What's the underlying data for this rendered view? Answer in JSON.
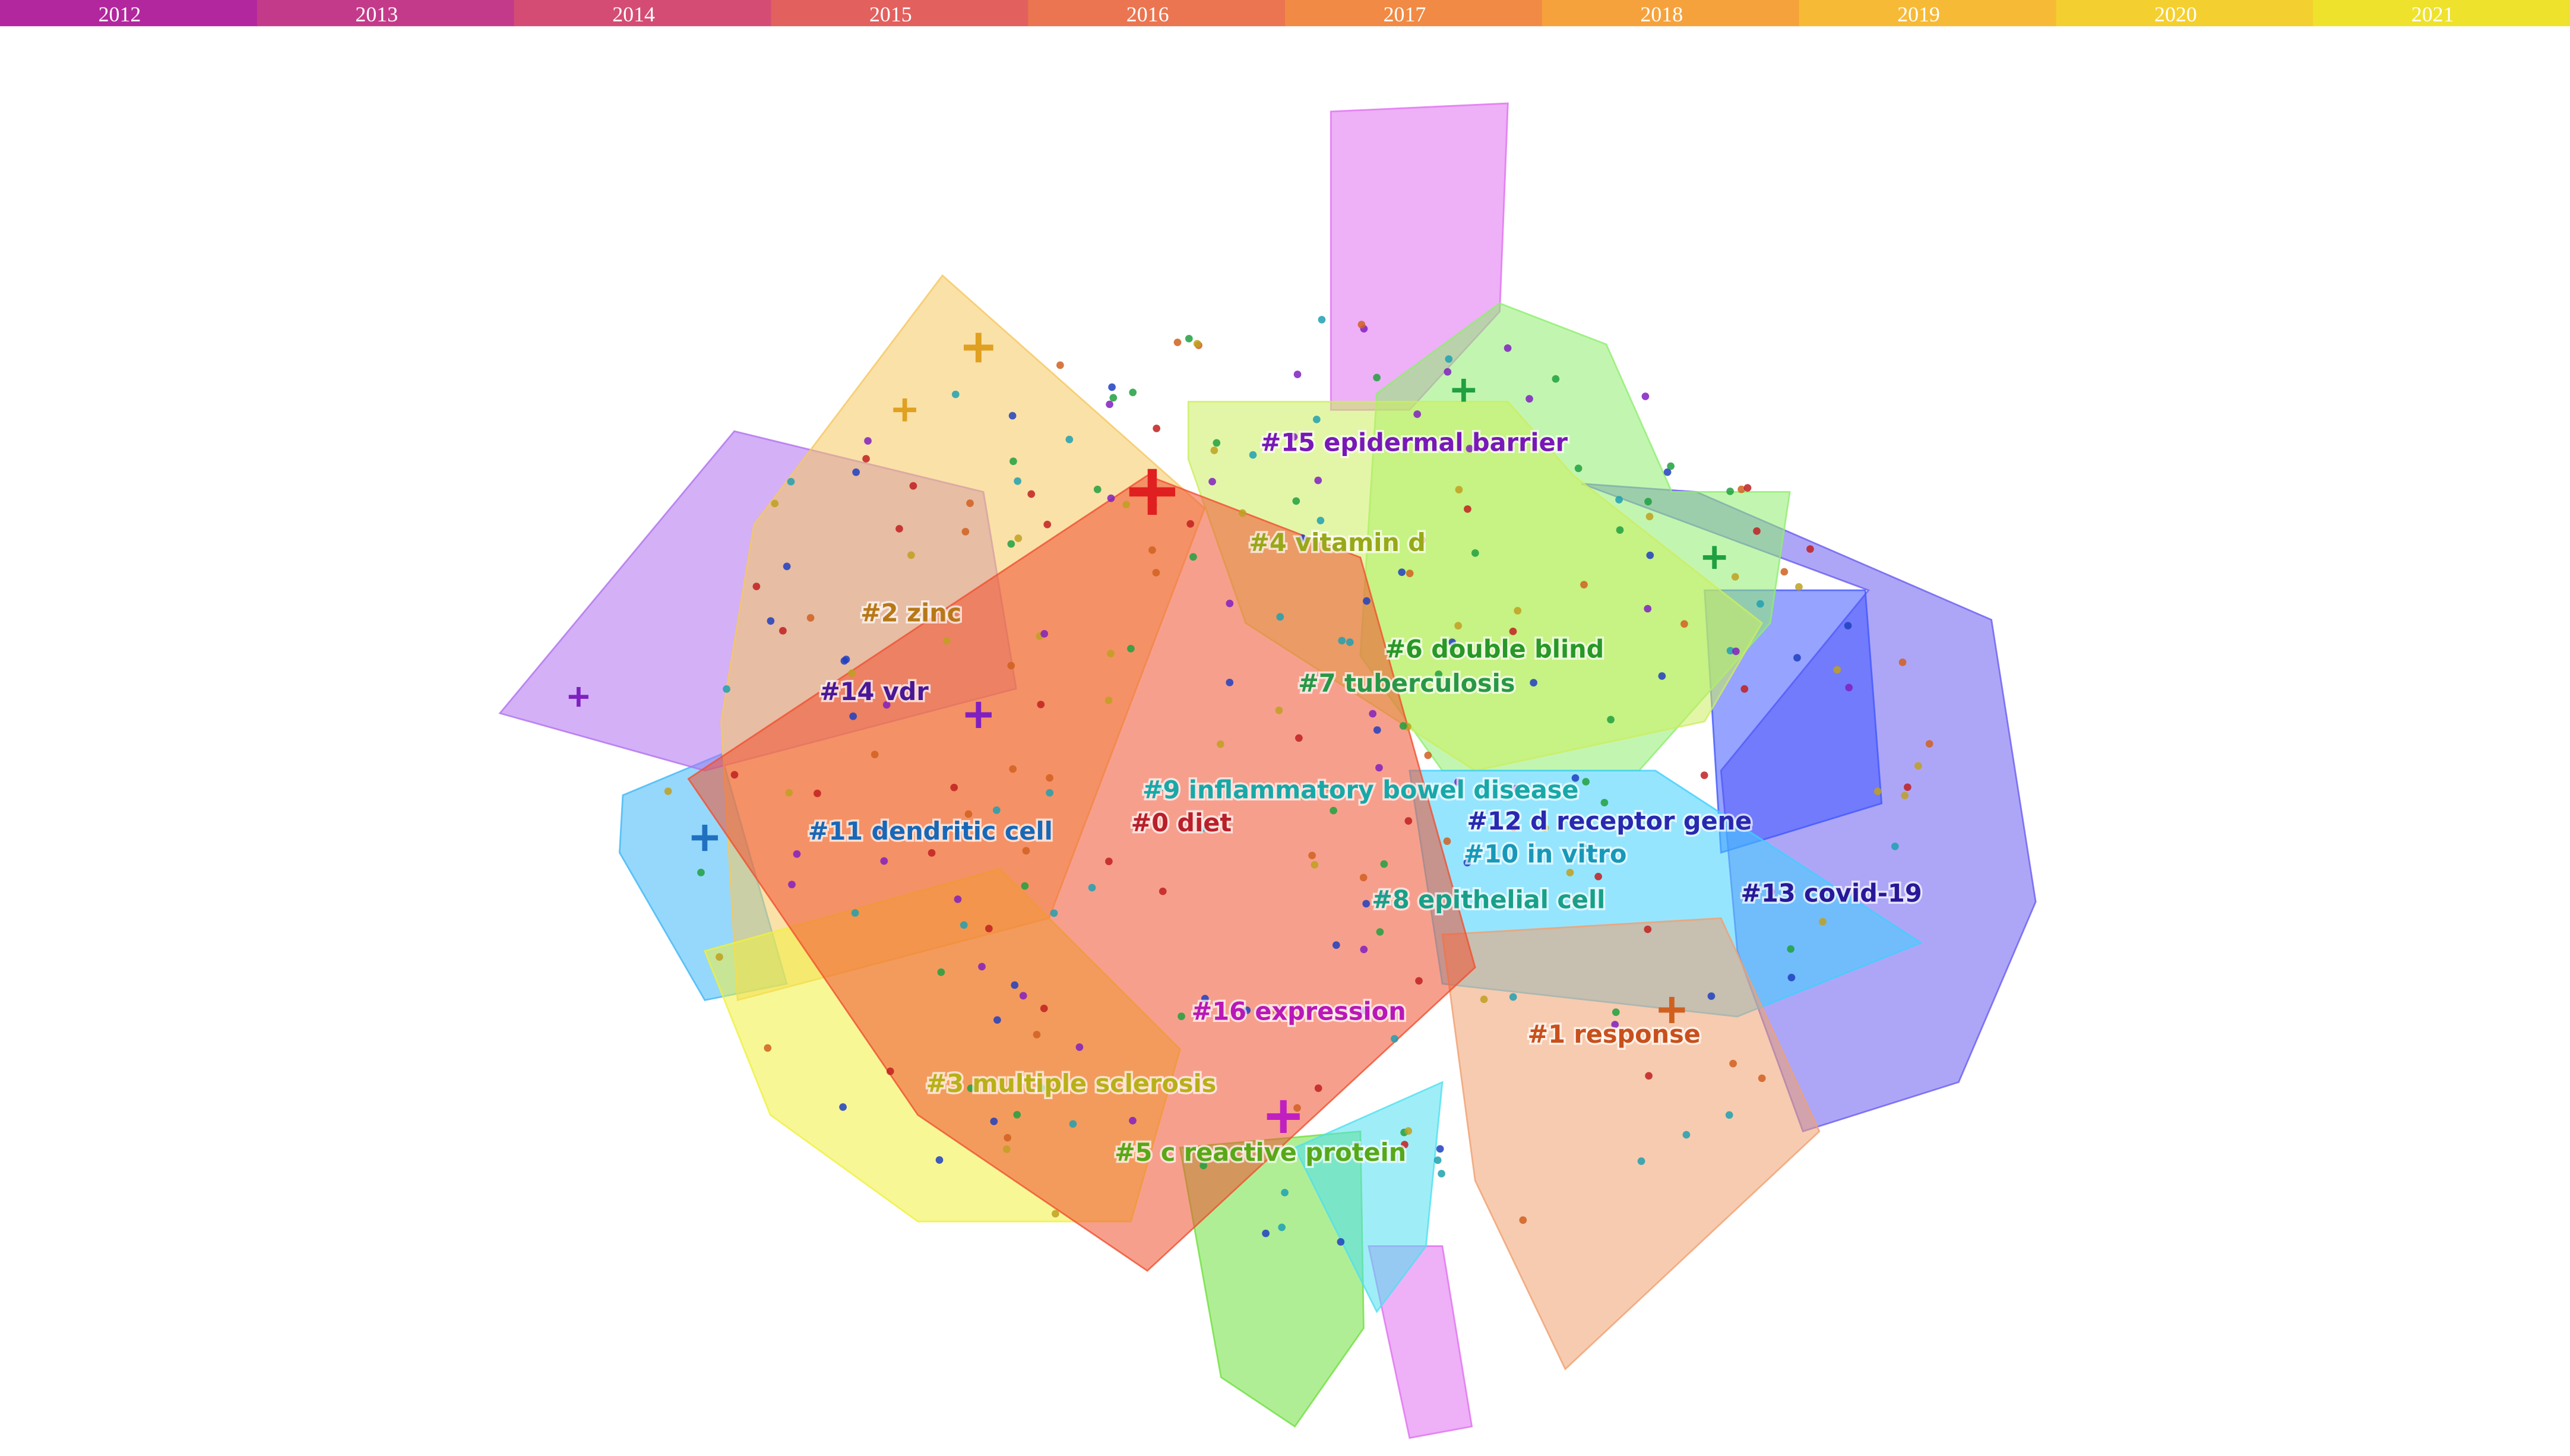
{
  "timeline": {
    "years": [
      "2012",
      "2013",
      "2014",
      "2015",
      "2016",
      "2017",
      "2018",
      "2019",
      "2020",
      "2021"
    ],
    "colors": [
      "#b2279e",
      "#c43a8a",
      "#d44c74",
      "#e2605e",
      "#ea7550",
      "#f08a44",
      "#f6a23c",
      "#f7ba36",
      "#f4cf30",
      "#efe22c"
    ]
  },
  "clusters": [
    {
      "label": "#0 diet",
      "color": "#b8202a"
    },
    {
      "label": "#1 response",
      "color": "#c8501c"
    },
    {
      "label": "#2 zinc",
      "color": "#b87818"
    },
    {
      "label": "#3 multiple sclerosis",
      "color": "#b8b018"
    },
    {
      "label": "#4 vitamin d",
      "color": "#98a818"
    },
    {
      "label": "#5 c reactive protein",
      "color": "#58a818"
    },
    {
      "label": "#6 double blind",
      "color": "#289828"
    },
    {
      "label": "#7 tuberculosis",
      "color": "#289848"
    },
    {
      "label": "#8 epithelial cell",
      "color": "#18a088"
    },
    {
      "label": "#9 inflammatory bowel disease",
      "color": "#18a8a8"
    },
    {
      "label": "#10 in vitro",
      "color": "#1898b8"
    },
    {
      "label": "#11 dendritic cell",
      "color": "#1868b8"
    },
    {
      "label": "#12 d receptor gene",
      "color": "#2828b0"
    },
    {
      "label": "#13 covid-19",
      "color": "#281898"
    },
    {
      "label": "#14 vdr",
      "color": "#481898"
    },
    {
      "label": "#15 epidermal barrier",
      "color": "#7818b8"
    },
    {
      "label": "#16 expression",
      "color": "#b818b8"
    }
  ]
}
